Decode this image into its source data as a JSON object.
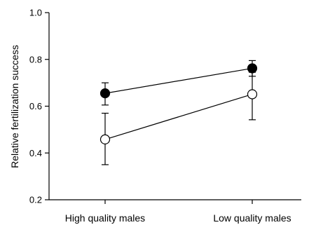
{
  "chart_data": {
    "type": "line",
    "ylabel": "Relative fertilization success",
    "xlabel": "",
    "categories": [
      "High quality males",
      "Low quality males"
    ],
    "ylim": [
      0.2,
      1.0
    ],
    "yticks": [
      0.2,
      0.4,
      0.6,
      0.8,
      1.0
    ],
    "ytick_labels": [
      "0.2",
      "0.4",
      "0.6",
      "0.8",
      "1.0"
    ],
    "grid": false,
    "series": [
      {
        "marker": "filled-circle",
        "color": "#000000",
        "values": [
          0.655,
          0.762
        ],
        "err_low": [
          0.605,
          0.728
        ],
        "err_high": [
          0.7,
          0.795
        ]
      },
      {
        "marker": "open-circle",
        "color": "#ffffff",
        "values": [
          0.458,
          0.651
        ],
        "err_low": [
          0.35,
          0.542
        ],
        "err_high": [
          0.57,
          0.745
        ]
      }
    ]
  }
}
